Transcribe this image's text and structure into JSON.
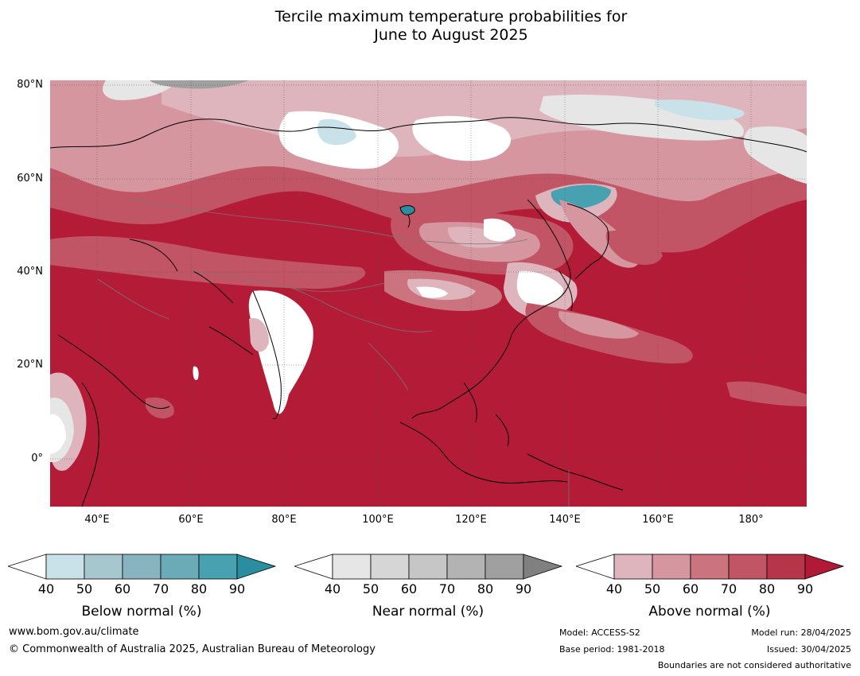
{
  "title": {
    "line1": "Tercile maximum temperature probabilities for",
    "line2": "June to August 2025"
  },
  "map": {
    "lat_labels": [
      "80°N",
      "60°N",
      "40°N",
      "20°N",
      "0°"
    ],
    "lon_labels": [
      "40°E",
      "60°E",
      "80°E",
      "100°E",
      "120°E",
      "140°E",
      "160°E",
      "180°"
    ],
    "lat_range": [
      -10,
      81
    ],
    "lon_range": [
      30,
      191
    ]
  },
  "colorbars": [
    {
      "caption": "Below normal (%)",
      "ticks": [
        "40",
        "50",
        "60",
        "70",
        "80",
        "90"
      ],
      "colors": [
        "#ffffff",
        "#c9e1e8",
        "#a7c7cf",
        "#87b4bf",
        "#6babb8",
        "#47a1b0",
        "#2b8ea0"
      ]
    },
    {
      "caption": "Near normal (%)",
      "ticks": [
        "40",
        "50",
        "60",
        "70",
        "80",
        "90"
      ],
      "colors": [
        "#ffffff",
        "#e6e6e6",
        "#d6d6d6",
        "#c6c6c6",
        "#b3b3b3",
        "#a0a0a0",
        "#808080"
      ]
    },
    {
      "caption": "Above normal (%)",
      "ticks": [
        "40",
        "50",
        "60",
        "70",
        "80",
        "90"
      ],
      "colors": [
        "#ffffff",
        "#deb5bd",
        "#d5969f",
        "#cb7480",
        "#c25565",
        "#b73549",
        "#b01a37"
      ]
    }
  ],
  "footer": {
    "website": "www.bom.gov.au/climate",
    "copyright": "© Commonwealth of Australia 2025, Australian Bureau of Meteorology",
    "model": "Model: ACCESS-S2",
    "base_period": "Base period: 1981-2018",
    "model_run": "Model run: 28/04/2025",
    "issued": "Issued: 30/04/2025",
    "disclaimer": "Boundaries are not considered authoritative"
  }
}
